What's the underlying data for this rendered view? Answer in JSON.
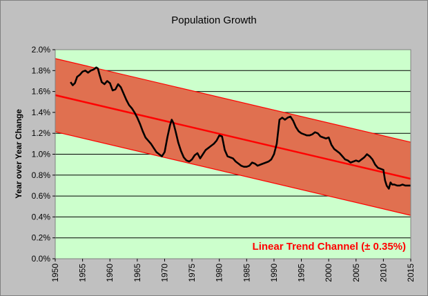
{
  "chart_data": {
    "type": "line",
    "title": "Population Growth",
    "xlabel": "",
    "ylabel": "Year over Year Change",
    "xlim": [
      1950,
      2015
    ],
    "ylim": [
      0.0,
      2.0
    ],
    "x_ticks": [
      1950,
      1955,
      1960,
      1965,
      1970,
      1975,
      1980,
      1985,
      1990,
      1995,
      2000,
      2005,
      2010,
      2015
    ],
    "y_ticks": [
      0.0,
      0.2,
      0.4,
      0.6,
      0.8,
      1.0,
      1.2,
      1.4,
      1.6,
      1.8,
      2.0
    ],
    "y_tick_labels": [
      "0.0%",
      "0.2%",
      "0.4%",
      "0.6%",
      "0.8%",
      "1.0%",
      "1.2%",
      "1.4%",
      "1.6%",
      "1.8%",
      "2.0%"
    ],
    "grid": true,
    "series": [
      {
        "name": "Population Growth",
        "color": "#000000",
        "x": [
          1952.8,
          1953.2,
          1953.6,
          1954.0,
          1954.5,
          1955.0,
          1955.5,
          1956.0,
          1956.5,
          1957.0,
          1957.5,
          1957.8,
          1958.1,
          1958.5,
          1959.0,
          1959.5,
          1960.0,
          1960.5,
          1961.0,
          1961.5,
          1962.0,
          1962.5,
          1963.0,
          1963.5,
          1964.0,
          1964.5,
          1965.0,
          1965.5,
          1966.0,
          1966.5,
          1967.0,
          1967.5,
          1968.0,
          1968.5,
          1969.0,
          1969.5,
          1970.0,
          1970.5,
          1971.0,
          1971.3,
          1971.6,
          1972.0,
          1972.5,
          1973.0,
          1973.5,
          1974.0,
          1974.5,
          1975.0,
          1975.5,
          1976.0,
          1976.5,
          1977.0,
          1977.5,
          1978.0,
          1978.5,
          1979.0,
          1979.5,
          1980.0,
          1980.5,
          1981.0,
          1981.5,
          1982.0,
          1982.5,
          1983.0,
          1983.5,
          1984.0,
          1984.5,
          1985.0,
          1985.5,
          1986.0,
          1986.5,
          1987.0,
          1987.5,
          1988.0,
          1988.5,
          1989.0,
          1989.5,
          1990.0,
          1990.5,
          1991.0,
          1991.5,
          1992.0,
          1992.5,
          1993.0,
          1993.5,
          1994.0,
          1994.5,
          1995.0,
          1995.5,
          1996.0,
          1996.5,
          1997.0,
          1997.5,
          1998.0,
          1998.5,
          1999.0,
          1999.5,
          2000.0,
          2000.5,
          2001.0,
          2001.5,
          2002.0,
          2002.5,
          2003.0,
          2003.5,
          2004.0,
          2004.5,
          2005.0,
          2005.5,
          2006.0,
          2006.5,
          2007.0,
          2007.5,
          2008.0,
          2008.5,
          2009.0,
          2009.5,
          2010.0,
          2010.3,
          2010.6,
          2011.0,
          2011.3,
          2011.6,
          2012.0,
          2012.5,
          2013.0,
          2013.5,
          2014.0,
          2014.5,
          2015.0
        ],
        "values": [
          1.69,
          1.66,
          1.68,
          1.74,
          1.76,
          1.79,
          1.8,
          1.78,
          1.8,
          1.81,
          1.83,
          1.82,
          1.76,
          1.69,
          1.67,
          1.7,
          1.68,
          1.61,
          1.62,
          1.67,
          1.64,
          1.58,
          1.52,
          1.47,
          1.44,
          1.4,
          1.35,
          1.29,
          1.22,
          1.16,
          1.13,
          1.1,
          1.06,
          1.02,
          1.0,
          0.98,
          1.02,
          1.16,
          1.28,
          1.33,
          1.3,
          1.22,
          1.11,
          1.03,
          0.97,
          0.94,
          0.93,
          0.95,
          0.99,
          1.01,
          0.96,
          1.0,
          1.04,
          1.06,
          1.08,
          1.1,
          1.13,
          1.18,
          1.17,
          1.04,
          0.98,
          0.97,
          0.96,
          0.93,
          0.91,
          0.89,
          0.88,
          0.88,
          0.89,
          0.92,
          0.91,
          0.89,
          0.9,
          0.91,
          0.92,
          0.93,
          0.95,
          1.0,
          1.1,
          1.33,
          1.35,
          1.33,
          1.35,
          1.36,
          1.32,
          1.26,
          1.22,
          1.2,
          1.19,
          1.18,
          1.18,
          1.19,
          1.21,
          1.2,
          1.17,
          1.16,
          1.15,
          1.16,
          1.09,
          1.05,
          1.03,
          1.01,
          0.98,
          0.95,
          0.94,
          0.92,
          0.93,
          0.94,
          0.93,
          0.95,
          0.97,
          1.0,
          0.98,
          0.95,
          0.9,
          0.87,
          0.86,
          0.85,
          0.75,
          0.7,
          0.67,
          0.73,
          0.71,
          0.71,
          0.7,
          0.7,
          0.71,
          0.7,
          0.7,
          0.7
        ]
      }
    ],
    "trend": {
      "name": "Linear Trend Channel (± 0.35%)",
      "x": [
        1950,
        2015
      ],
      "center": [
        1.565,
        0.765
      ],
      "width": 0.35,
      "center_color": "#ff0000",
      "band_color": "#e07050",
      "edge_color": "#ff0000"
    },
    "annotation": "Linear Trend Channel (± 0.35%)",
    "colors": {
      "plot_background": "#ccffcc",
      "outer_background": "#c0c0c0",
      "grid": "#000000",
      "annotation": "#ff0000"
    }
  }
}
